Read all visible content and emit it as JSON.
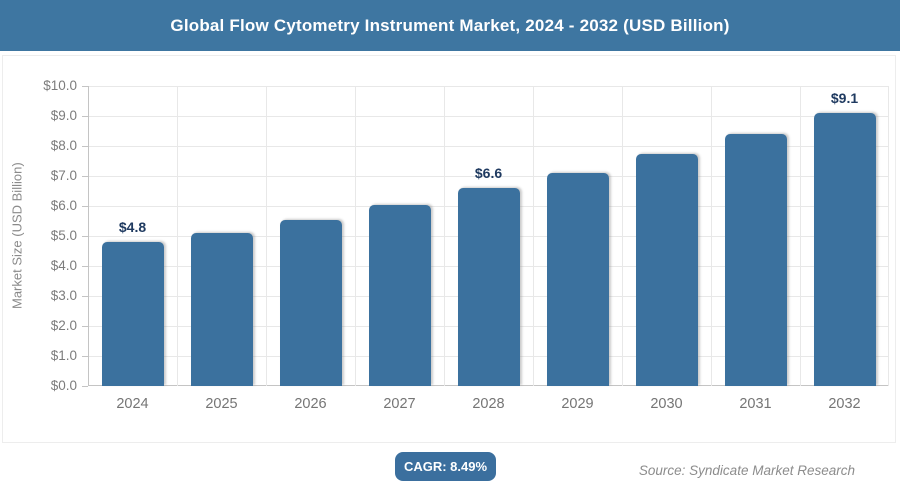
{
  "header": {
    "title": "Global Flow Cytometry Instrument Market, 2024 - 2032 (USD Billion)"
  },
  "chart_data": {
    "type": "bar",
    "title": "Global Flow Cytometry Instrument Market, 2024 - 2032 (USD Billion)",
    "categories": [
      "2024",
      "2025",
      "2026",
      "2027",
      "2028",
      "2029",
      "2030",
      "2031",
      "2032"
    ],
    "values": [
      4.8,
      5.1,
      5.55,
      6.05,
      6.6,
      7.1,
      7.75,
      8.4,
      9.1
    ],
    "data_labels": [
      "$4.8",
      null,
      null,
      null,
      "$6.6",
      null,
      null,
      null,
      "$9.1"
    ],
    "xlabel": "",
    "ylabel": "Market Size (USD Billion)",
    "ylim": [
      0,
      10
    ],
    "ytick_labels": [
      "$0.0",
      "$1.0",
      "$2.0",
      "$3.0",
      "$4.0",
      "$5.0",
      "$6.0",
      "$7.0",
      "$8.0",
      "$9.0",
      "$10.0"
    ],
    "grid": true,
    "legend_position": "none",
    "bar_color": "#3b719e",
    "data_label_color": "#1f3a60"
  },
  "footer": {
    "cagr_label": "CAGR: 8.49%",
    "source": "Source: Syndicate Market Research"
  },
  "colors": {
    "header_bg": "#3e76a1",
    "badge_bg": "#3b6f9e",
    "grid": "#e8e8e8",
    "axis": "#c4c4c4",
    "tick_text": "#7c7c7c"
  }
}
